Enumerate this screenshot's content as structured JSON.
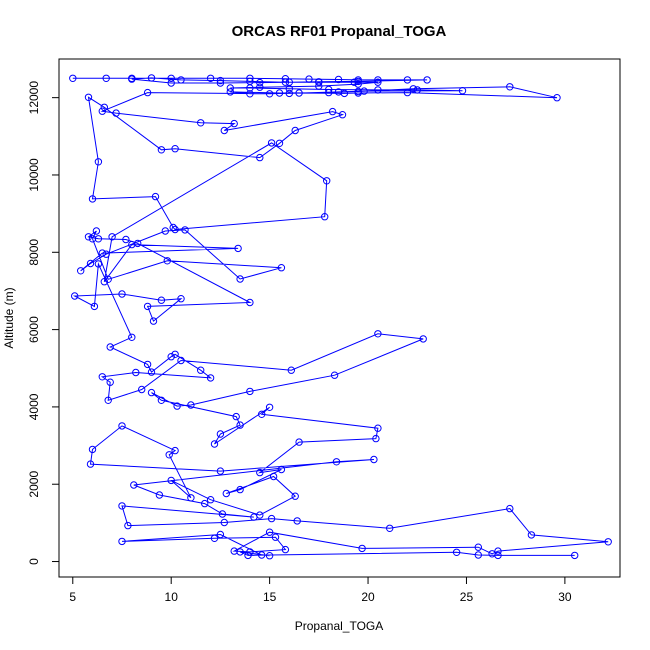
{
  "chart_data": {
    "type": "scatter",
    "title": "ORCAS RF01 Propanal_TOGA",
    "xlabel": "Propanal_TOGA",
    "ylabel": "Altitude (m)",
    "xlim": [
      4.3,
      32.8
    ],
    "ylim": [
      -400,
      13000
    ],
    "xticks": [
      5,
      10,
      15,
      20,
      25,
      30
    ],
    "yticks": [
      0,
      2000,
      4000,
      6000,
      8000,
      10000,
      12000
    ],
    "grid": false,
    "legend": "none",
    "color": "#0000ff",
    "series": [
      {
        "values": [
          [
            5.0,
            12500
          ],
          [
            6.7,
            12500
          ],
          [
            8.0,
            12500
          ],
          [
            10.0,
            12500
          ],
          [
            12.0,
            12500
          ],
          [
            14.0,
            12500
          ],
          [
            15.8,
            12490
          ],
          [
            17.0,
            12480
          ],
          [
            18.5,
            12470
          ],
          [
            19.5,
            12460
          ],
          [
            20.5,
            12460
          ],
          [
            22.0,
            12460
          ],
          [
            23.0,
            12460
          ],
          [
            19.5,
            12420
          ],
          [
            17.5,
            12410
          ],
          [
            16.0,
            12400
          ],
          [
            14.5,
            12390
          ],
          [
            12.5,
            12380
          ],
          [
            10.0,
            12380
          ],
          [
            8.0,
            12480
          ],
          [
            9.0,
            12510
          ],
          [
            10.5,
            12460
          ],
          [
            12.5,
            12440
          ],
          [
            14.0,
            12420
          ],
          [
            15.8,
            12400
          ],
          [
            17.5,
            12400
          ],
          [
            19.3,
            12400
          ],
          [
            20.5,
            12400
          ],
          [
            19.5,
            12350
          ],
          [
            17.5,
            12300
          ],
          [
            14.5,
            12270
          ],
          [
            13.0,
            12250
          ],
          [
            14.0,
            12250
          ],
          [
            16.0,
            12230
          ],
          [
            18.0,
            12210
          ],
          [
            20.5,
            12200
          ],
          [
            22.5,
            12200
          ],
          [
            24.8,
            12180
          ],
          [
            19.8,
            12170
          ],
          [
            18.5,
            12150
          ],
          [
            16.0,
            12110
          ],
          [
            14.0,
            12100
          ],
          [
            13.0,
            12150
          ],
          [
            15.5,
            12120
          ],
          [
            18.0,
            12130
          ],
          [
            19.5,
            12160
          ],
          [
            22.3,
            12230
          ],
          [
            27.2,
            12280
          ],
          [
            29.6,
            12000
          ],
          [
            22.0,
            12130
          ],
          [
            19.5,
            12120
          ],
          [
            18.8,
            12110
          ],
          [
            16.5,
            12120
          ],
          [
            15.0,
            12100
          ],
          [
            8.8,
            12130
          ],
          [
            6.5,
            11650
          ],
          [
            7.2,
            11600
          ],
          [
            11.5,
            11350
          ],
          [
            13.2,
            11330
          ],
          [
            12.7,
            11150
          ],
          [
            18.2,
            11640
          ],
          [
            18.7,
            11560
          ],
          [
            16.3,
            11150
          ],
          [
            15.5,
            10820
          ],
          [
            14.5,
            10450
          ],
          [
            10.2,
            10680
          ],
          [
            9.5,
            10650
          ],
          [
            6.6,
            11750
          ],
          [
            5.8,
            12010
          ],
          [
            6.3,
            10340
          ],
          [
            6.0,
            9380
          ],
          [
            9.2,
            9440
          ],
          [
            10.1,
            8640
          ],
          [
            10.2,
            8590
          ],
          [
            17.8,
            8920
          ],
          [
            17.9,
            9850
          ],
          [
            15.1,
            10830
          ],
          [
            7.0,
            8400
          ],
          [
            6.6,
            7240
          ],
          [
            8.0,
            8200
          ],
          [
            13.4,
            8100
          ],
          [
            6.5,
            7980
          ],
          [
            5.4,
            7520
          ],
          [
            5.9,
            7710
          ],
          [
            6.7,
            7950
          ],
          [
            9.7,
            8550
          ],
          [
            10.7,
            8580
          ],
          [
            13.5,
            7310
          ],
          [
            15.6,
            7600
          ],
          [
            9.8,
            7780
          ],
          [
            6.8,
            7300
          ],
          [
            6.0,
            8350
          ],
          [
            6.2,
            8550
          ],
          [
            5.8,
            8400
          ],
          [
            6.3,
            8350
          ],
          [
            7.7,
            8330
          ],
          [
            8.3,
            8230
          ],
          [
            14.0,
            6700
          ],
          [
            8.8,
            6600
          ],
          [
            9.1,
            6220
          ],
          [
            10.5,
            6800
          ],
          [
            9.5,
            6760
          ],
          [
            7.5,
            6920
          ],
          [
            5.1,
            6870
          ],
          [
            6.1,
            6600
          ],
          [
            6.3,
            7700
          ],
          [
            8.0,
            5800
          ],
          [
            6.9,
            5550
          ],
          [
            8.8,
            5100
          ],
          [
            9.0,
            4900
          ],
          [
            10.0,
            5300
          ],
          [
            10.2,
            5360
          ],
          [
            11.5,
            4950
          ],
          [
            12.0,
            4750
          ],
          [
            8.2,
            4890
          ],
          [
            6.5,
            4780
          ],
          [
            6.9,
            4640
          ],
          [
            6.8,
            4170
          ],
          [
            8.5,
            4450
          ],
          [
            10.5,
            5200
          ],
          [
            16.1,
            4950
          ],
          [
            20.5,
            5890
          ],
          [
            22.8,
            5760
          ],
          [
            18.3,
            4820
          ],
          [
            14.0,
            4400
          ],
          [
            11.0,
            4050
          ],
          [
            10.3,
            4020
          ],
          [
            9.0,
            4370
          ],
          [
            9.5,
            4170
          ],
          [
            13.3,
            3750
          ],
          [
            13.5,
            3530
          ],
          [
            12.5,
            3300
          ],
          [
            12.2,
            3040
          ],
          [
            15.0,
            3990
          ],
          [
            14.6,
            3810
          ],
          [
            20.5,
            3450
          ],
          [
            20.4,
            3180
          ],
          [
            16.5,
            3090
          ],
          [
            14.5,
            2300
          ],
          [
            15.6,
            2380
          ],
          [
            13.5,
            1860
          ],
          [
            12.8,
            1760
          ],
          [
            15.2,
            2200
          ],
          [
            16.3,
            1690
          ],
          [
            14.5,
            1200
          ],
          [
            12.0,
            1600
          ],
          [
            10.0,
            2100
          ],
          [
            11.0,
            1650
          ],
          [
            9.9,
            2760
          ],
          [
            10.2,
            2870
          ],
          [
            7.5,
            3510
          ],
          [
            6.0,
            2900
          ],
          [
            5.9,
            2520
          ],
          [
            12.5,
            2340
          ],
          [
            20.3,
            2640
          ],
          [
            18.4,
            2580
          ],
          [
            8.1,
            1980
          ],
          [
            9.4,
            1720
          ],
          [
            11.7,
            1500
          ],
          [
            12.6,
            1230
          ],
          [
            14.2,
            1150
          ],
          [
            7.5,
            1440
          ],
          [
            7.8,
            930
          ],
          [
            12.7,
            1010
          ],
          [
            15.1,
            1110
          ],
          [
            16.4,
            1050
          ],
          [
            21.1,
            860
          ],
          [
            27.2,
            1370
          ],
          [
            28.3,
            690
          ],
          [
            32.2,
            510
          ],
          [
            26.6,
            270
          ],
          [
            26.3,
            200
          ],
          [
            25.6,
            370
          ],
          [
            19.7,
            340
          ],
          [
            15.0,
            760
          ],
          [
            13.2,
            270
          ],
          [
            14.0,
            250
          ],
          [
            15.8,
            310
          ],
          [
            15.3,
            630
          ],
          [
            12.2,
            600
          ],
          [
            7.5,
            520
          ],
          [
            12.5,
            700
          ],
          [
            14.6,
            170
          ],
          [
            15.0,
            150
          ],
          [
            13.5,
            250
          ],
          [
            13.9,
            160
          ],
          [
            24.5,
            240
          ],
          [
            25.6,
            170
          ],
          [
            26.6,
            160
          ],
          [
            30.5,
            160
          ]
        ]
      }
    ]
  }
}
